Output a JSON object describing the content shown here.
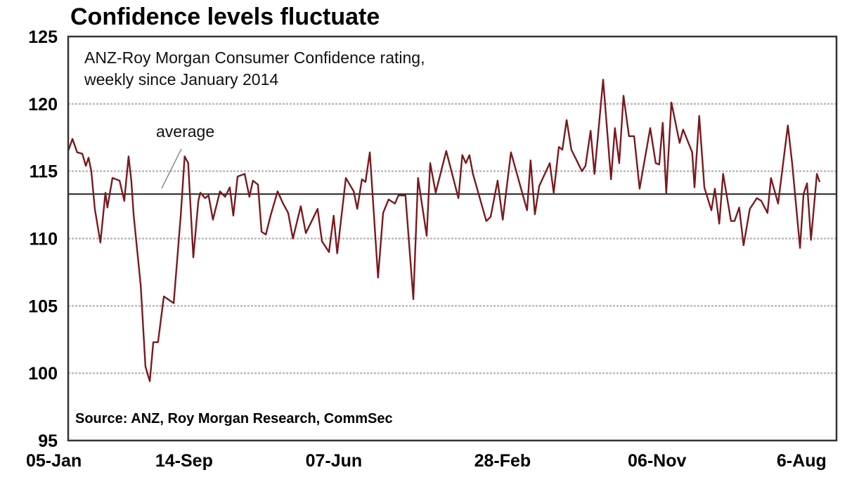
{
  "chart_data": {
    "type": "line",
    "title": "Confidence levels fluctuate",
    "subtitle": [
      "ANZ-Roy Morgan Consumer Confidence rating,",
      "weekly since January 2014"
    ],
    "source": "Source: ANZ, Roy Morgan Research, CommSec",
    "xlabel": "",
    "ylabel": "",
    "x_unit": "weeks since 05-Jan-2014",
    "xlim": [
      0,
      191.6
    ],
    "ylim": [
      95,
      125
    ],
    "y_ticks": [
      95,
      100,
      105,
      110,
      115,
      120,
      125
    ],
    "x_ticks": [
      {
        "week": 0,
        "label": "05-Jan"
      },
      {
        "week": 36,
        "label": "14-Sep"
      },
      {
        "week": 74,
        "label": "07-Jun"
      },
      {
        "week": 112,
        "label": "28-Feb"
      },
      {
        "week": 148,
        "label": "06-Nov"
      },
      {
        "week": 187,
        "label": "6-Aug"
      }
    ],
    "grid": true,
    "average": {
      "label": "average",
      "value": 113.3
    },
    "series": [
      {
        "name": "ANZ-Roy Morgan Consumer Confidence",
        "color": "#7a1a1e",
        "x": [
          0,
          1.1,
          2.3,
          3.6,
          4.5,
          5.2,
          5.9,
          6.8,
          8.2,
          9.5,
          10.0,
          11.3,
          13.1,
          14.3,
          15.4,
          16.1,
          16.7,
          18.5,
          19.7,
          20.8,
          21.7,
          22.9,
          24.4,
          26.9,
          28.7,
          29.7,
          30.6,
          31.9,
          33.2,
          33.7,
          34.9,
          35.8,
          36.9,
          38.7,
          40.0,
          41.2,
          42.1,
          43.2,
          45.0,
          46.2,
          47.1,
          48.4,
          49.3,
          50.4,
          51.6,
          53.4,
          54.8,
          56.1,
          57.3,
          59.3,
          60.6,
          63.6,
          64.7,
          66.5,
          67.7,
          68.6,
          70.8,
          72.8,
          73.7,
          74.9,
          75.8,
          76.9,
          79.0,
          80.3,
          81.7,
          83.3,
          84.2,
          86.0,
          88.0,
          89.2,
          91.4,
          92.3,
          93.7,
          96.4,
          99.5,
          100.5,
          101.4,
          102.3,
          103.2,
          106.6,
          107.7,
          109.5,
          110.8,
          112.9,
          117.0,
          117.9,
          119.0,
          120.1,
          122.8,
          123.8,
          125.1,
          126.0,
          127.1,
          128.3,
          131.0,
          131.9,
          133.2,
          134.2,
          136.4,
          138.4,
          139.4,
          140.5,
          141.6,
          143.0,
          144.3,
          145.7,
          148.4,
          149.8,
          150.7,
          151.6,
          152.5,
          153.8,
          155.9,
          156.8,
          159.1,
          159.7,
          160.9,
          162.2,
          164.0,
          164.9,
          166.0,
          167.0,
          169.0,
          169.9,
          171.1,
          172.2,
          173.8,
          175.6,
          176.7,
          178.3,
          179.2,
          181.0,
          183.5,
          184.6,
          186.6,
          187.5,
          188.4,
          189.4,
          190.9,
          191.6
        ],
        "y": [
          116.5,
          117.4,
          116.4,
          116.3,
          115.4,
          116.0,
          115.0,
          112.2,
          109.7,
          113.4,
          112.3,
          114.5,
          114.3,
          112.8,
          116.1,
          114.3,
          111.7,
          106.5,
          100.5,
          99.4,
          102.3,
          102.3,
          105.7,
          105.2,
          111.7,
          116.1,
          115.6,
          108.6,
          112.8,
          113.4,
          113.0,
          113.2,
          111.4,
          113.5,
          113.1,
          113.8,
          111.7,
          114.6,
          114.8,
          113.1,
          114.3,
          114.0,
          110.5,
          110.3,
          111.7,
          113.5,
          112.6,
          111.9,
          110.0,
          112.4,
          110.4,
          112.2,
          109.8,
          109.0,
          111.7,
          108.9,
          114.5,
          113.5,
          112.2,
          114.4,
          114.2,
          116.4,
          107.1,
          111.9,
          112.9,
          112.6,
          113.2,
          113.2,
          105.5,
          114.5,
          110.2,
          115.6,
          113.4,
          116.5,
          113.0,
          116.2,
          115.6,
          116.2,
          114.8,
          111.3,
          111.6,
          114.3,
          111.4,
          116.4,
          112.1,
          115.8,
          111.8,
          113.9,
          115.6,
          113.4,
          116.8,
          116.6,
          118.8,
          116.6,
          115.0,
          115.4,
          118.0,
          114.8,
          121.8,
          114.4,
          118.2,
          115.6,
          120.6,
          117.6,
          117.6,
          113.7,
          118.2,
          115.6,
          115.5,
          118.6,
          113.4,
          120.1,
          117.1,
          118.1,
          116.4,
          113.8,
          119.1,
          113.8,
          112.1,
          113.7,
          111.1,
          114.8,
          111.3,
          111.3,
          112.3,
          109.5,
          112.2,
          113.0,
          112.8,
          111.9,
          114.5,
          112.6,
          118.4,
          115.6,
          109.3,
          113.3,
          114.1,
          109.9,
          114.8,
          114.2
        ]
      }
    ]
  }
}
